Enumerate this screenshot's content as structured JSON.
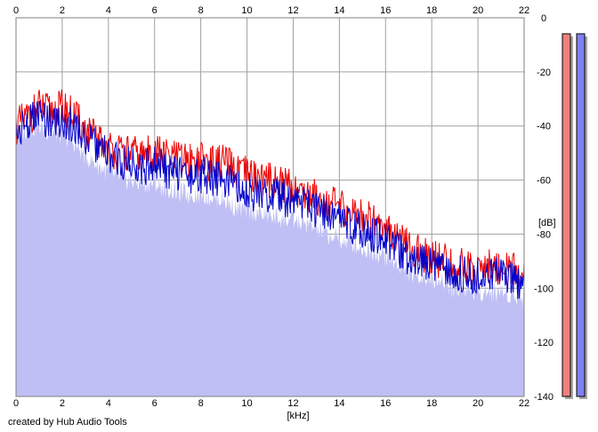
{
  "chart_data": {
    "type": "area",
    "xlabel": "[kHz]",
    "ylabel": "[dB]",
    "xlim": [
      0,
      22
    ],
    "ylim": [
      -140,
      0
    ],
    "x_ticks": [
      0,
      2,
      4,
      6,
      8,
      10,
      12,
      14,
      16,
      18,
      20,
      22
    ],
    "y_ticks": [
      0,
      -20,
      -40,
      -60,
      -80,
      -100,
      -120,
      -140
    ],
    "grid": true,
    "series": [
      {
        "color": "#ee0000",
        "style": "line",
        "x": [
          0,
          0.5,
          1,
          1.5,
          2,
          2.5,
          3,
          3.5,
          4,
          4.5,
          5,
          5.5,
          6,
          6.5,
          7,
          7.5,
          8,
          8.5,
          9,
          9.5,
          10,
          10.5,
          11,
          11.5,
          12,
          12.5,
          13,
          13.5,
          14,
          14.5,
          15,
          15.5,
          16,
          16.5,
          17,
          17.5,
          18,
          18.5,
          19,
          19.5,
          20,
          20.5,
          21,
          21.5,
          22
        ],
        "values": [
          -38,
          -35,
          -31,
          -33,
          -31,
          -34,
          -40,
          -43,
          -46,
          -48,
          -48,
          -49,
          -47,
          -49,
          -50,
          -51,
          -50,
          -52,
          -51,
          -55,
          -56,
          -57,
          -58,
          -59,
          -61,
          -63,
          -64,
          -66,
          -68,
          -70,
          -71,
          -73,
          -74,
          -79,
          -83,
          -85,
          -86,
          -88,
          -90,
          -90,
          -91,
          -90,
          -90,
          -91,
          -93
        ]
      },
      {
        "color": "#0000cc",
        "style": "line",
        "x": [
          0,
          0.5,
          1,
          1.5,
          2,
          2.5,
          3,
          3.5,
          4,
          4.5,
          5,
          5.5,
          6,
          6.5,
          7,
          7.5,
          8,
          8.5,
          9,
          9.5,
          10,
          10.5,
          11,
          11.5,
          12,
          12.5,
          13,
          13.5,
          14,
          14.5,
          15,
          15.5,
          16,
          16.5,
          17,
          17.5,
          18,
          18.5,
          19,
          19.5,
          20,
          20.5,
          21,
          21.5,
          22
        ],
        "values": [
          -40,
          -37,
          -34,
          -36,
          -36,
          -38,
          -42,
          -46,
          -49,
          -51,
          -52,
          -53,
          -52,
          -54,
          -55,
          -56,
          -56,
          -57,
          -57,
          -61,
          -62,
          -63,
          -64,
          -64,
          -66,
          -67,
          -69,
          -71,
          -73,
          -75,
          -76,
          -78,
          -79,
          -83,
          -87,
          -88,
          -89,
          -91,
          -93,
          -92,
          -94,
          -93,
          -93,
          -94,
          -96
        ]
      },
      {
        "color": "#bfbff5",
        "style": "area",
        "x": [
          0,
          0.5,
          1,
          1.5,
          2,
          2.5,
          3,
          3.5,
          4,
          4.5,
          5,
          5.5,
          6,
          6.5,
          7,
          7.5,
          8,
          8.5,
          9,
          9.5,
          10,
          10.5,
          11,
          11.5,
          12,
          12.5,
          13,
          13.5,
          14,
          14.5,
          15,
          15.5,
          16,
          16.5,
          17,
          17.5,
          18,
          18.5,
          19,
          19.5,
          20,
          20.5,
          21,
          21.5,
          22
        ],
        "values": [
          -42,
          -40,
          -39,
          -41,
          -42,
          -45,
          -50,
          -53,
          -56,
          -58,
          -59,
          -60,
          -60,
          -62,
          -63,
          -64,
          -64,
          -65,
          -66,
          -69,
          -70,
          -71,
          -72,
          -73,
          -74,
          -75,
          -77,
          -79,
          -81,
          -82,
          -84,
          -85,
          -87,
          -90,
          -93,
          -94,
          -95,
          -97,
          -99,
          -99,
          -100,
          -100,
          -100,
          -101,
          -102
        ]
      }
    ],
    "level_meters": [
      {
        "color": "#f08080",
        "level": 1.0
      },
      {
        "color": "#8080f0",
        "level": 1.0
      }
    ]
  },
  "footer": {
    "credit": "created by Hub Audio Tools"
  }
}
